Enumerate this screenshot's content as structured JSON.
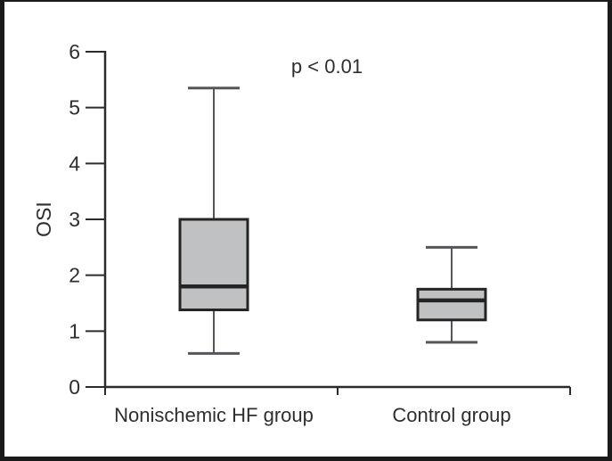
{
  "chart_data": {
    "type": "box",
    "title": "",
    "xlabel": "",
    "ylabel": "OSI",
    "annotation": "p < 0.01",
    "ylim": [
      0,
      6
    ],
    "yticks": [
      0,
      1,
      2,
      3,
      4,
      5,
      6
    ],
    "categories": [
      "Nonischemic HF group",
      "Control group"
    ],
    "series": [
      {
        "name": "Nonischemic HF group",
        "min": 0.6,
        "q1": 1.38,
        "median": 1.8,
        "q3": 3.0,
        "max": 5.35
      },
      {
        "name": "Control group",
        "min": 0.8,
        "q1": 1.2,
        "median": 1.55,
        "q3": 1.75,
        "max": 2.5
      }
    ],
    "grid": false,
    "legend_position": "none",
    "colors": {
      "box_fill": "#c0c1c3",
      "box_stroke": "#242424",
      "median_stroke": "#242424",
      "whisker_stroke": "#55565a",
      "axis_stroke": "#2b2b2b",
      "text": "#2e2e2e",
      "frame_border": "#1a1a1a",
      "background": "#ffffff"
    }
  }
}
